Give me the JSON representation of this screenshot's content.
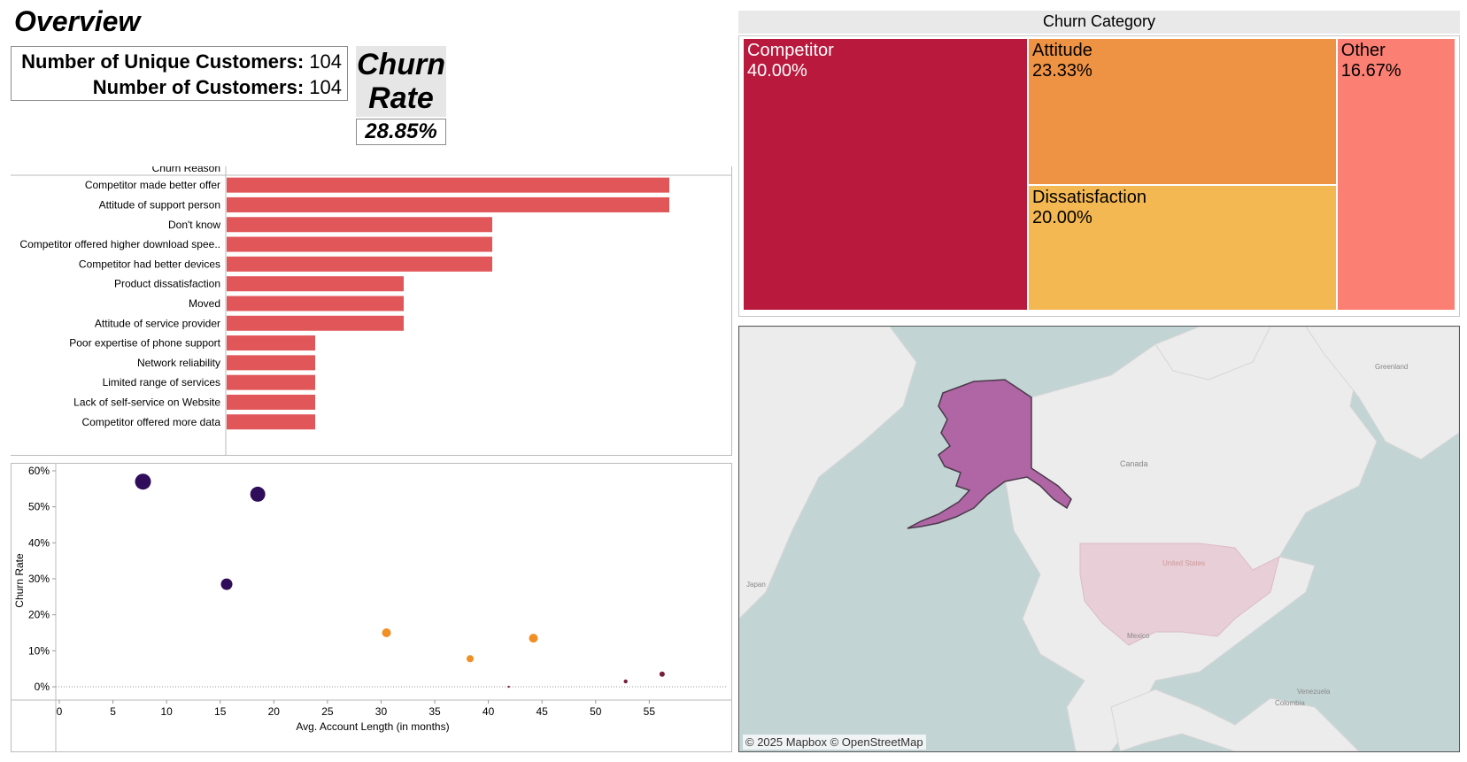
{
  "header": {
    "title": "Overview",
    "kpis": [
      {
        "label": "Number of Unique Customers:",
        "value": "104"
      },
      {
        "label": "Number of Customers:",
        "value": "104"
      }
    ],
    "churn_rate_label_line1": "Churn",
    "churn_rate_label_line2": "Rate",
    "churn_rate_value": "28.85%"
  },
  "colors": {
    "bar": "#e15759",
    "competitor": "#b8193d",
    "attitude": "#ee9344",
    "dissatisfaction": "#f4b852",
    "other": "#fb7f73",
    "scatter_dark": "#2f0d5a",
    "scatter_orange": "#ef8f25",
    "scatter_maroon": "#7a1d3f",
    "alaska": "#b065a5",
    "water": "#c3d4d5",
    "land": "#ececec"
  },
  "chart_data": [
    {
      "type": "bar",
      "orientation": "horizontal",
      "header": "Churn Reason",
      "categories": [
        "Competitor made better offer",
        "Attitude of support person",
        "Don't know",
        "Competitor offered higher download spee..",
        "Competitor had better devices",
        "Product dissatisfaction",
        "Moved",
        "Attitude of service provider",
        "Poor expertise of phone support",
        "Network reliability",
        "Limited range of services",
        "Lack of self-service on Website",
        "Competitor offered more data"
      ],
      "values": [
        5,
        5,
        3,
        3,
        3,
        2,
        2,
        2,
        1,
        1,
        1,
        1,
        1
      ],
      "xlim": [
        0,
        5
      ]
    },
    {
      "type": "scatter",
      "xlabel": "Avg. Account Length (in months)",
      "ylabel": "Churn Rate",
      "xlim": [
        0,
        59
      ],
      "ylim": [
        0,
        0.62
      ],
      "x_ticks": [
        "0",
        "5",
        "10",
        "15",
        "20",
        "25",
        "30",
        "35",
        "40",
        "45",
        "50",
        "55"
      ],
      "y_ticks": [
        "0%",
        "10%",
        "20%",
        "30%",
        "40%",
        "50%",
        "60%"
      ],
      "points": [
        {
          "x": 7.8,
          "y": 0.57,
          "size": 9,
          "group": "dark"
        },
        {
          "x": 18.5,
          "y": 0.535,
          "size": 8.5,
          "group": "dark"
        },
        {
          "x": 15.6,
          "y": 0.285,
          "size": 6.5,
          "group": "dark"
        },
        {
          "x": 30.5,
          "y": 0.15,
          "size": 5,
          "group": "orange"
        },
        {
          "x": 44.2,
          "y": 0.135,
          "size": 5,
          "group": "orange"
        },
        {
          "x": 38.3,
          "y": 0.078,
          "size": 4,
          "group": "orange"
        },
        {
          "x": 56.2,
          "y": 0.035,
          "size": 3,
          "group": "maroon"
        },
        {
          "x": 52.8,
          "y": 0.015,
          "size": 2.2,
          "group": "maroon"
        },
        {
          "x": 41.9,
          "y": 0.0,
          "size": 1.2,
          "group": "maroon"
        }
      ]
    },
    {
      "type": "treemap",
      "title": "Churn Category",
      "cells": [
        {
          "name": "Competitor",
          "value": "40.00%",
          "share": 40.0,
          "color_key": "competitor"
        },
        {
          "name": "Attitude",
          "value": "23.33%",
          "share": 23.33,
          "color_key": "attitude"
        },
        {
          "name": "Dissatisfaction",
          "value": "20.00%",
          "share": 20.0,
          "color_key": "dissatisfaction"
        },
        {
          "name": "Other",
          "value": "16.67%",
          "share": 16.67,
          "color_key": "other"
        }
      ]
    }
  ],
  "map": {
    "labels": [
      "Greenland",
      "Canada",
      "United States",
      "Japan",
      "Mexico",
      "Venezuela",
      "Colombia"
    ],
    "credit": "© 2025 Mapbox © OpenStreetMap"
  }
}
